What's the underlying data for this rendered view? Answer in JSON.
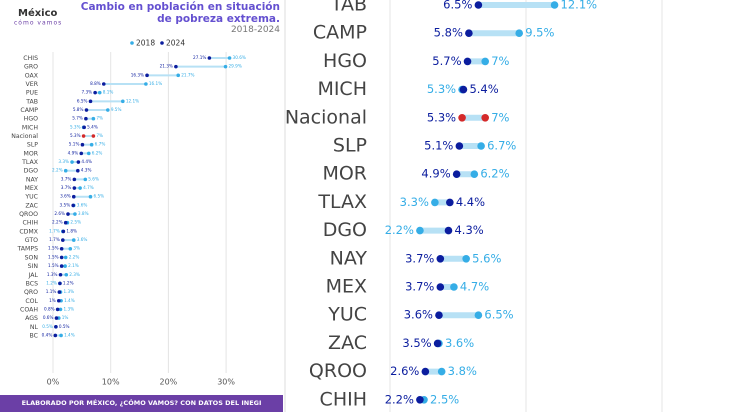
{
  "chart_data": {
    "type": "dumbbell",
    "logo": {
      "name": "México",
      "tagline": "cómo vamos"
    },
    "title": "Cambio en población en situación de pobreza extrema.",
    "subtitle": "2018-2024",
    "footer": "ELABORADO POR MÉXICO, ¿CÓMO VAMOS? CON DATOS DEL INEGI",
    "categories": [
      "CHIS",
      "GRO",
      "OAX",
      "VER",
      "PUE",
      "TAB",
      "CAMP",
      "HGO",
      "MICH",
      "Nacional",
      "SLP",
      "MOR",
      "TLAX",
      "DGO",
      "NAY",
      "MEX",
      "YUC",
      "ZAC",
      "QROO",
      "CHIH",
      "CDMX",
      "GTO",
      "TAMPS",
      "SON",
      "SIN",
      "JAL",
      "BCS",
      "QRO",
      "COL",
      "COAH",
      "AGS",
      "NL",
      "BC"
    ],
    "series": [
      {
        "name": "2018",
        "color": "#35ade6",
        "values": [
          30.6,
          29.9,
          21.7,
          16.1,
          8.1,
          12.1,
          9.5,
          7,
          5.3,
          7,
          6.7,
          6.2,
          3.3,
          2.2,
          5.6,
          4.7,
          6.5,
          3.6,
          3.8,
          2.5,
          1.7,
          3.6,
          3,
          2.2,
          2.1,
          2.3,
          1.2,
          1.3,
          1.4,
          1.3,
          1,
          0.5,
          1.4
        ],
        "value_labels": [
          "30.6%",
          "29.9%",
          "21.7%",
          "16.1%",
          "8.1%",
          "12.1%",
          "9.5%",
          "7%",
          "5.3%",
          "7%",
          "6.7%",
          "6.2%",
          "3.3%",
          "2.2%",
          "5.6%",
          "4.7%",
          "6.5%",
          "3.6%",
          "3.8%",
          "2.5%",
          "1.7%",
          "3.6%",
          "3%",
          "2.2%",
          "2.1%",
          "2.3%",
          "1.2%",
          "1.3%",
          "1.4%",
          "1.3%",
          "1%",
          "0.5%",
          "1.4%"
        ]
      },
      {
        "name": "2024",
        "color": "#0b1d9e",
        "values": [
          27.1,
          21.3,
          16.3,
          8.8,
          7.3,
          6.5,
          5.8,
          5.7,
          5.4,
          5.3,
          5.1,
          4.9,
          4.4,
          4.3,
          3.7,
          3.7,
          3.6,
          3.5,
          2.6,
          2.2,
          1.8,
          1.7,
          1.5,
          1.5,
          1.5,
          1.3,
          1.2,
          1.1,
          1,
          0.8,
          0.6,
          0.5,
          0.4
        ],
        "value_labels": [
          "27.1%",
          "21.3%",
          "16.3%",
          "8.8%",
          "7.3%",
          "6.5%",
          "5.8%",
          "5.7%",
          "5.4%",
          "5.3%",
          "5.1%",
          "4.9%",
          "4.4%",
          "4.3%",
          "3.7%",
          "3.7%",
          "3.6%",
          "3.5%",
          "2.6%",
          "2.2%",
          "1.8%",
          "1.7%",
          "1.5%",
          "1.5%",
          "1.5%",
          "1.3%",
          "1.2%",
          "1.1%",
          "1%",
          "0.8%",
          "0.6%",
          "0.5%",
          "0.4%"
        ]
      }
    ],
    "highlight_index": 9,
    "highlight_color": "#d42a2a",
    "xlim": [
      0,
      35
    ],
    "xticks": [
      {
        "value": 0,
        "label": "0%"
      },
      {
        "value": 10,
        "label": "10%"
      },
      {
        "value": 20,
        "label": "20%"
      },
      {
        "value": 30,
        "label": "30%"
      }
    ],
    "grid": true
  }
}
